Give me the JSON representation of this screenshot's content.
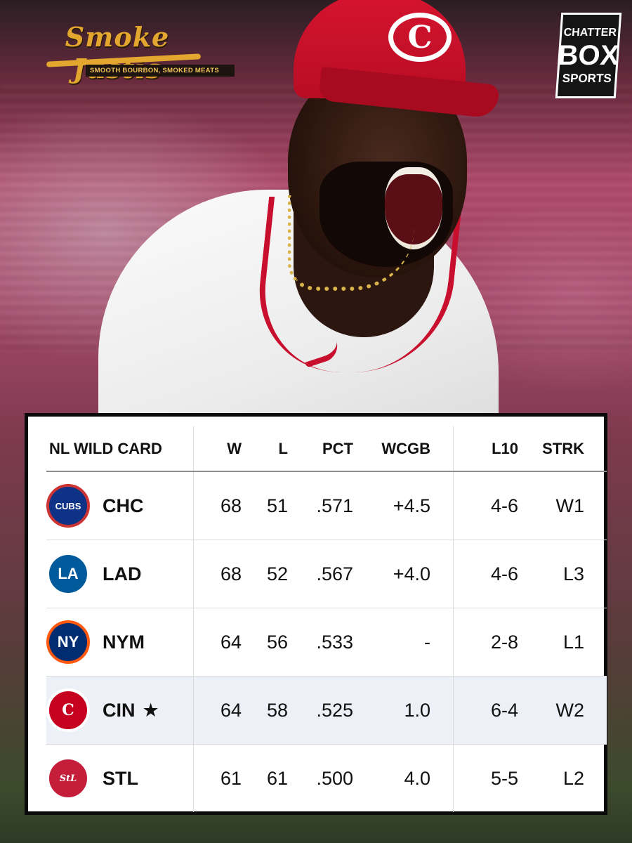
{
  "sponsor": {
    "name": "Smoke Justis",
    "tagline": "SMOOTH BOURBON, SMOKED MEATS"
  },
  "brand": {
    "line1": "CHATTER",
    "line2": "BOX",
    "line3": "SPORTS"
  },
  "cap_logo": "C",
  "standings": {
    "headers": {
      "team": "NL WILD CARD",
      "w": "W",
      "l": "L",
      "pct": "PCT",
      "wcgb": "WCGB",
      "l10": "L10",
      "strk": "STRK"
    },
    "rows": [
      {
        "logo_icon": "cubs-logo-icon",
        "logo_text": "CUBS",
        "logo_color": "#0e3386",
        "logo_accent": "#cc3433",
        "abbr": "CHC",
        "star": "",
        "w": "68",
        "l": "51",
        "pct": ".571",
        "wcgb": "+4.5",
        "l10": "4-6",
        "strk": "W1"
      },
      {
        "logo_icon": "dodgers-logo-icon",
        "logo_text": "LA",
        "logo_color": "#005a9c",
        "logo_accent": "#ffffff",
        "abbr": "LAD",
        "star": "",
        "w": "68",
        "l": "52",
        "pct": ".567",
        "wcgb": "+4.0",
        "l10": "4-6",
        "strk": "L3"
      },
      {
        "logo_icon": "mets-logo-icon",
        "logo_text": "NY",
        "logo_color": "#002d72",
        "logo_accent": "#ff5910",
        "abbr": "NYM",
        "star": "",
        "w": "64",
        "l": "56",
        "pct": ".533",
        "wcgb": "-",
        "l10": "2-8",
        "strk": "L1"
      },
      {
        "logo_icon": "reds-logo-icon",
        "logo_text": "C",
        "logo_color": "#c6011f",
        "logo_accent": "#ffffff",
        "abbr": "CIN",
        "star": "★",
        "w": "64",
        "l": "58",
        "pct": ".525",
        "wcgb": "1.0",
        "l10": "6-4",
        "strk": "W2"
      },
      {
        "logo_icon": "cardinals-logo-icon",
        "logo_text": "StL",
        "logo_color": "#c41e3a",
        "logo_accent": "#ffffff",
        "abbr": "STL",
        "star": "",
        "w": "61",
        "l": "61",
        "pct": ".500",
        "wcgb": "4.0",
        "l10": "5-5",
        "strk": "L2"
      }
    ],
    "highlight_abbr": "CIN",
    "highlight_color": "#eef0f7"
  }
}
